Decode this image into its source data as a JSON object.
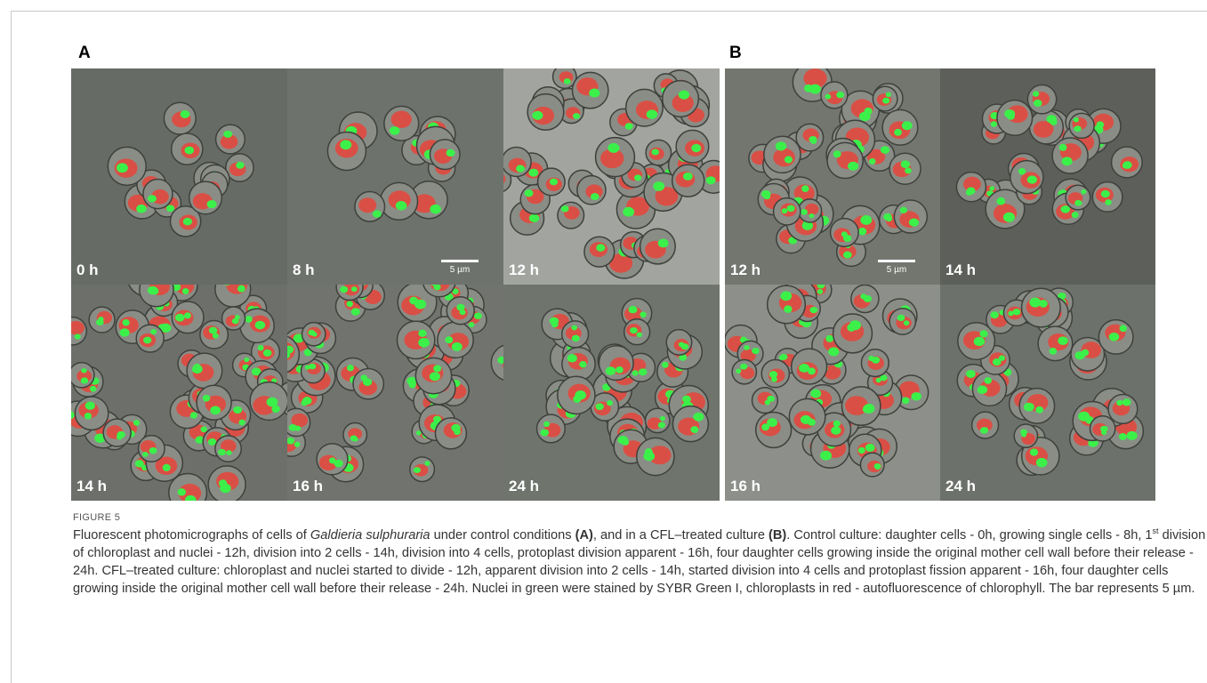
{
  "figure": {
    "panels": [
      {
        "label": "A",
        "images": [
          {
            "time": "0 h"
          },
          {
            "time": "8 h",
            "scale_bar": "5 µm"
          },
          {
            "time": "12 h"
          },
          {
            "time": "14 h"
          },
          {
            "time": "16 h"
          },
          {
            "time": "24 h"
          }
        ]
      },
      {
        "label": "B",
        "images": [
          {
            "time": "12 h",
            "scale_bar": "5 µm"
          },
          {
            "time": "14 h"
          },
          {
            "time": "16 h"
          },
          {
            "time": "24 h"
          }
        ]
      }
    ],
    "caption": {
      "label": "FIGURE 5",
      "parts": [
        "Fluorescent photomicrographs of cells of ",
        "Galdieria sulphuraria",
        " under control conditions ",
        "(A)",
        ", and in a CFL–treated culture ",
        "(B)",
        ". Control culture: daughter cells - 0h, growing single cells - 8h, 1",
        "st",
        " division of chloroplast and nuclei - 12h, division into 2 cells - 14h, division into 4 cells, protoplast division apparent - 16h, four daughter cells growing inside the original mother cell wall before their release - 24h. CFL–treated culture: chloroplast and nuclei started to divide - 12h, apparent division into 2 cells - 14h, started division into 4 cells and protoplast fission apparent - 16h, four daughter cells growing inside the original mother cell wall before their release - 24h. Nuclei in green were stained by SYBR Green I, chloroplasts in red - autofluorescence of chlorophyll. The bar represents 5 µm."
      ]
    }
  }
}
